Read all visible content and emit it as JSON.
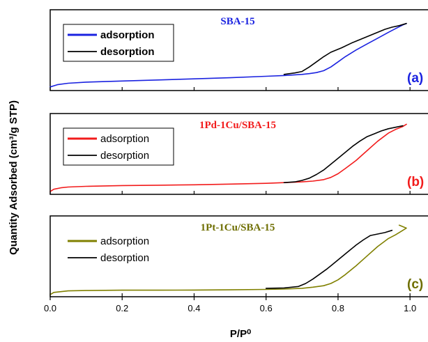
{
  "figure": {
    "ylabel": "Quantity Adsorbed (cm³/g STP)",
    "xlabel": "P/P⁰"
  },
  "chart_data": [
    {
      "type": "line",
      "title": "SBA-15",
      "title_color": "#1a22e0",
      "panel_label": "(a)",
      "panel_label_color": "#1a22e0",
      "legend": {
        "placement": "top-left",
        "boxed": true,
        "bold": true
      },
      "xlim": [
        0.0,
        1.05
      ],
      "ylim": [
        0,
        100
      ],
      "series": [
        {
          "name": "adsorption",
          "color": "#1a22e0",
          "x": [
            0.0,
            0.02,
            0.05,
            0.1,
            0.2,
            0.3,
            0.4,
            0.5,
            0.6,
            0.65,
            0.7,
            0.72,
            0.74,
            0.76,
            0.78,
            0.8,
            0.82,
            0.85,
            0.88,
            0.91,
            0.94,
            0.96,
            0.98,
            0.99
          ],
          "y": [
            3,
            6,
            8,
            9.5,
            11,
            12.5,
            14,
            15.5,
            17.5,
            18.5,
            20,
            21,
            22.5,
            25,
            30,
            37,
            44,
            53,
            61,
            69,
            77,
            82,
            87,
            89
          ]
        },
        {
          "name": "desorption",
          "color": "#000000",
          "x": [
            0.99,
            0.97,
            0.95,
            0.93,
            0.9,
            0.87,
            0.84,
            0.81,
            0.78,
            0.76,
            0.74,
            0.72,
            0.7,
            0.68,
            0.65
          ],
          "y": [
            89,
            86,
            84,
            81,
            75,
            69,
            63,
            56,
            50,
            44,
            37,
            30,
            24,
            22,
            20
          ]
        }
      ]
    },
    {
      "type": "line",
      "title": "1Pd-1Cu/SBA-15",
      "title_color": "#f21b1b",
      "panel_label": "(b)",
      "panel_label_color": "#f21b1b",
      "legend": {
        "placement": "top-left",
        "boxed": true,
        "bold": false
      },
      "xlim": [
        0.0,
        1.05
      ],
      "ylim": [
        0,
        100
      ],
      "series": [
        {
          "name": "adsorption",
          "color": "#f21b1b",
          "x": [
            0.0,
            0.01,
            0.03,
            0.05,
            0.1,
            0.2,
            0.3,
            0.4,
            0.5,
            0.6,
            0.65,
            0.7,
            0.73,
            0.76,
            0.78,
            0.8,
            0.82,
            0.85,
            0.88,
            0.91,
            0.94,
            0.96,
            0.98,
            0.99
          ],
          "y": [
            2,
            5,
            7,
            8,
            9,
            10,
            10.5,
            11,
            12,
            13,
            14,
            15,
            16,
            18,
            21,
            26,
            33,
            44,
            57,
            70,
            81,
            86,
            90,
            93
          ]
        },
        {
          "name": "desorption",
          "color": "#000000",
          "x": [
            0.98,
            0.96,
            0.94,
            0.92,
            0.9,
            0.88,
            0.86,
            0.84,
            0.82,
            0.8,
            0.78,
            0.76,
            0.74,
            0.72,
            0.7,
            0.68,
            0.65
          ],
          "y": [
            91,
            89,
            87,
            84,
            80,
            76,
            70,
            63,
            55,
            47,
            39,
            31,
            25,
            20,
            17,
            15,
            14
          ]
        }
      ]
    },
    {
      "type": "line",
      "title": "1Pt-1Cu/SBA-15",
      "title_color": "#6e6e00",
      "panel_label": "(c)",
      "panel_label_color": "#6e6e00",
      "legend": {
        "placement": "top-left",
        "boxed": false,
        "bold": false
      },
      "xlim": [
        0.0,
        1.05
      ],
      "ylim": [
        0,
        100
      ],
      "series": [
        {
          "name": "adsorption",
          "color": "#808000",
          "x": [
            0.0,
            0.01,
            0.03,
            0.05,
            0.1,
            0.2,
            0.3,
            0.4,
            0.5,
            0.6,
            0.65,
            0.7,
            0.73,
            0.76,
            0.78,
            0.8,
            0.82,
            0.85,
            0.88,
            0.91,
            0.94,
            0.96,
            0.98,
            0.99,
            0.97
          ],
          "y": [
            1,
            4,
            5,
            6,
            6.5,
            7,
            7,
            7.2,
            7.5,
            8,
            8.5,
            9.5,
            11,
            13,
            16,
            21,
            28,
            40,
            53,
            66,
            77,
            82,
            88,
            91,
            95
          ]
        },
        {
          "name": "desorption",
          "color": "#000000",
          "x": [
            0.95,
            0.93,
            0.91,
            0.89,
            0.87,
            0.85,
            0.83,
            0.81,
            0.79,
            0.77,
            0.75,
            0.73,
            0.71,
            0.69,
            0.65,
            0.6
          ],
          "y": [
            88,
            85,
            83,
            81,
            75,
            68,
            60,
            52,
            44,
            36,
            29,
            22,
            16,
            12,
            10,
            9.5
          ]
        }
      ]
    }
  ],
  "x_axis": {
    "ticks": [
      0.0,
      0.2,
      0.4,
      0.6,
      0.8,
      1.0
    ],
    "tick_labels": [
      "0.0",
      "0.2",
      "0.4",
      "0.6",
      "0.8",
      "1.0"
    ]
  }
}
